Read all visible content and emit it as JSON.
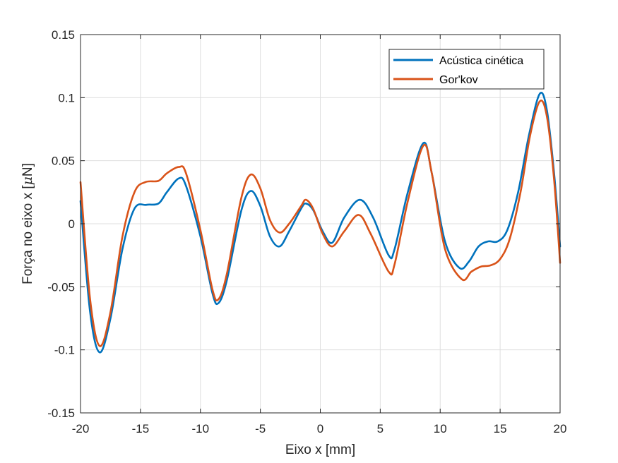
{
  "chart_data": {
    "type": "line",
    "xlabel": "Eixo x [mm]",
    "ylabel_parts": [
      "Força no eixo x [",
      "μ",
      "N]"
    ],
    "xlim": [
      -20,
      20
    ],
    "ylim": [
      -0.15,
      0.15
    ],
    "x_ticks": [
      -20,
      -15,
      -10,
      -5,
      0,
      5,
      10,
      15,
      20
    ],
    "x_tick_labels": [
      "-20",
      "-15",
      "-10",
      "-5",
      "0",
      "5",
      "10",
      "15",
      "20"
    ],
    "y_ticks": [
      -0.15,
      -0.1,
      -0.05,
      0,
      0.05,
      0.1,
      0.15
    ],
    "y_tick_labels": [
      "-0.15",
      "-0.1",
      "-0.05",
      "0",
      "0.05",
      "0.1",
      "0.15"
    ],
    "grid": true,
    "legend_position": "top-right",
    "series": [
      {
        "name": "Acústica cinética",
        "color": "#0072BD",
        "points": [
          [
            -20,
            0.018
          ],
          [
            -19.2,
            -0.07
          ],
          [
            -18.4,
            -0.102
          ],
          [
            -17.5,
            -0.075
          ],
          [
            -16.5,
            -0.02
          ],
          [
            -15.5,
            0.012
          ],
          [
            -14.5,
            0.015
          ],
          [
            -13.5,
            0.016
          ],
          [
            -12.8,
            0.025
          ],
          [
            -11.8,
            0.036
          ],
          [
            -11.2,
            0.03
          ],
          [
            -10.0,
            -0.01
          ],
          [
            -9.0,
            -0.055
          ],
          [
            -8.5,
            -0.063
          ],
          [
            -7.8,
            -0.045
          ],
          [
            -6.6,
            0.01
          ],
          [
            -5.8,
            0.026
          ],
          [
            -5.0,
            0.014
          ],
          [
            -4.2,
            -0.01
          ],
          [
            -3.4,
            -0.018
          ],
          [
            -2.6,
            -0.006
          ],
          [
            -1.6,
            0.012
          ],
          [
            -1.2,
            0.016
          ],
          [
            -0.6,
            0.011
          ],
          [
            0.2,
            -0.006
          ],
          [
            1.0,
            -0.015
          ],
          [
            2.0,
            0.005
          ],
          [
            3.3,
            0.019
          ],
          [
            4.4,
            0.005
          ],
          [
            5.7,
            -0.025
          ],
          [
            6.2,
            -0.02
          ],
          [
            7.3,
            0.025
          ],
          [
            8.6,
            0.064
          ],
          [
            9.3,
            0.04
          ],
          [
            10.4,
            -0.014
          ],
          [
            11.6,
            -0.035
          ],
          [
            12.4,
            -0.03
          ],
          [
            13.2,
            -0.018
          ],
          [
            14.0,
            -0.014
          ],
          [
            14.8,
            -0.014
          ],
          [
            15.6,
            -0.005
          ],
          [
            16.5,
            0.025
          ],
          [
            17.4,
            0.07
          ],
          [
            18.3,
            0.103
          ],
          [
            18.9,
            0.09
          ],
          [
            19.5,
            0.04
          ],
          [
            20,
            -0.018
          ]
        ]
      },
      {
        "name": "Gor'kov",
        "color": "#D95319",
        "points": [
          [
            -20,
            0.033
          ],
          [
            -19.2,
            -0.06
          ],
          [
            -18.4,
            -0.097
          ],
          [
            -17.5,
            -0.07
          ],
          [
            -16.5,
            -0.01
          ],
          [
            -15.5,
            0.025
          ],
          [
            -14.6,
            0.033
          ],
          [
            -13.5,
            0.034
          ],
          [
            -12.8,
            0.04
          ],
          [
            -11.8,
            0.045
          ],
          [
            -11.2,
            0.04
          ],
          [
            -10.0,
            -0.005
          ],
          [
            -9.0,
            -0.052
          ],
          [
            -8.5,
            -0.06
          ],
          [
            -7.8,
            -0.04
          ],
          [
            -6.6,
            0.02
          ],
          [
            -5.8,
            0.039
          ],
          [
            -5.0,
            0.028
          ],
          [
            -4.2,
            0.003
          ],
          [
            -3.4,
            -0.007
          ],
          [
            -2.6,
            0.0
          ],
          [
            -1.6,
            0.014
          ],
          [
            -1.2,
            0.019
          ],
          [
            -0.6,
            0.012
          ],
          [
            0.2,
            -0.008
          ],
          [
            1.0,
            -0.018
          ],
          [
            2.0,
            -0.006
          ],
          [
            3.2,
            0.007
          ],
          [
            4.2,
            -0.008
          ],
          [
            5.7,
            -0.038
          ],
          [
            6.2,
            -0.032
          ],
          [
            7.3,
            0.018
          ],
          [
            8.6,
            0.062
          ],
          [
            9.3,
            0.04
          ],
          [
            10.4,
            -0.02
          ],
          [
            11.8,
            -0.044
          ],
          [
            12.6,
            -0.038
          ],
          [
            13.4,
            -0.034
          ],
          [
            14.2,
            -0.033
          ],
          [
            15.0,
            -0.028
          ],
          [
            15.8,
            -0.012
          ],
          [
            16.7,
            0.025
          ],
          [
            17.5,
            0.07
          ],
          [
            18.3,
            0.097
          ],
          [
            18.9,
            0.085
          ],
          [
            19.5,
            0.035
          ],
          [
            20,
            -0.031
          ]
        ]
      }
    ]
  }
}
